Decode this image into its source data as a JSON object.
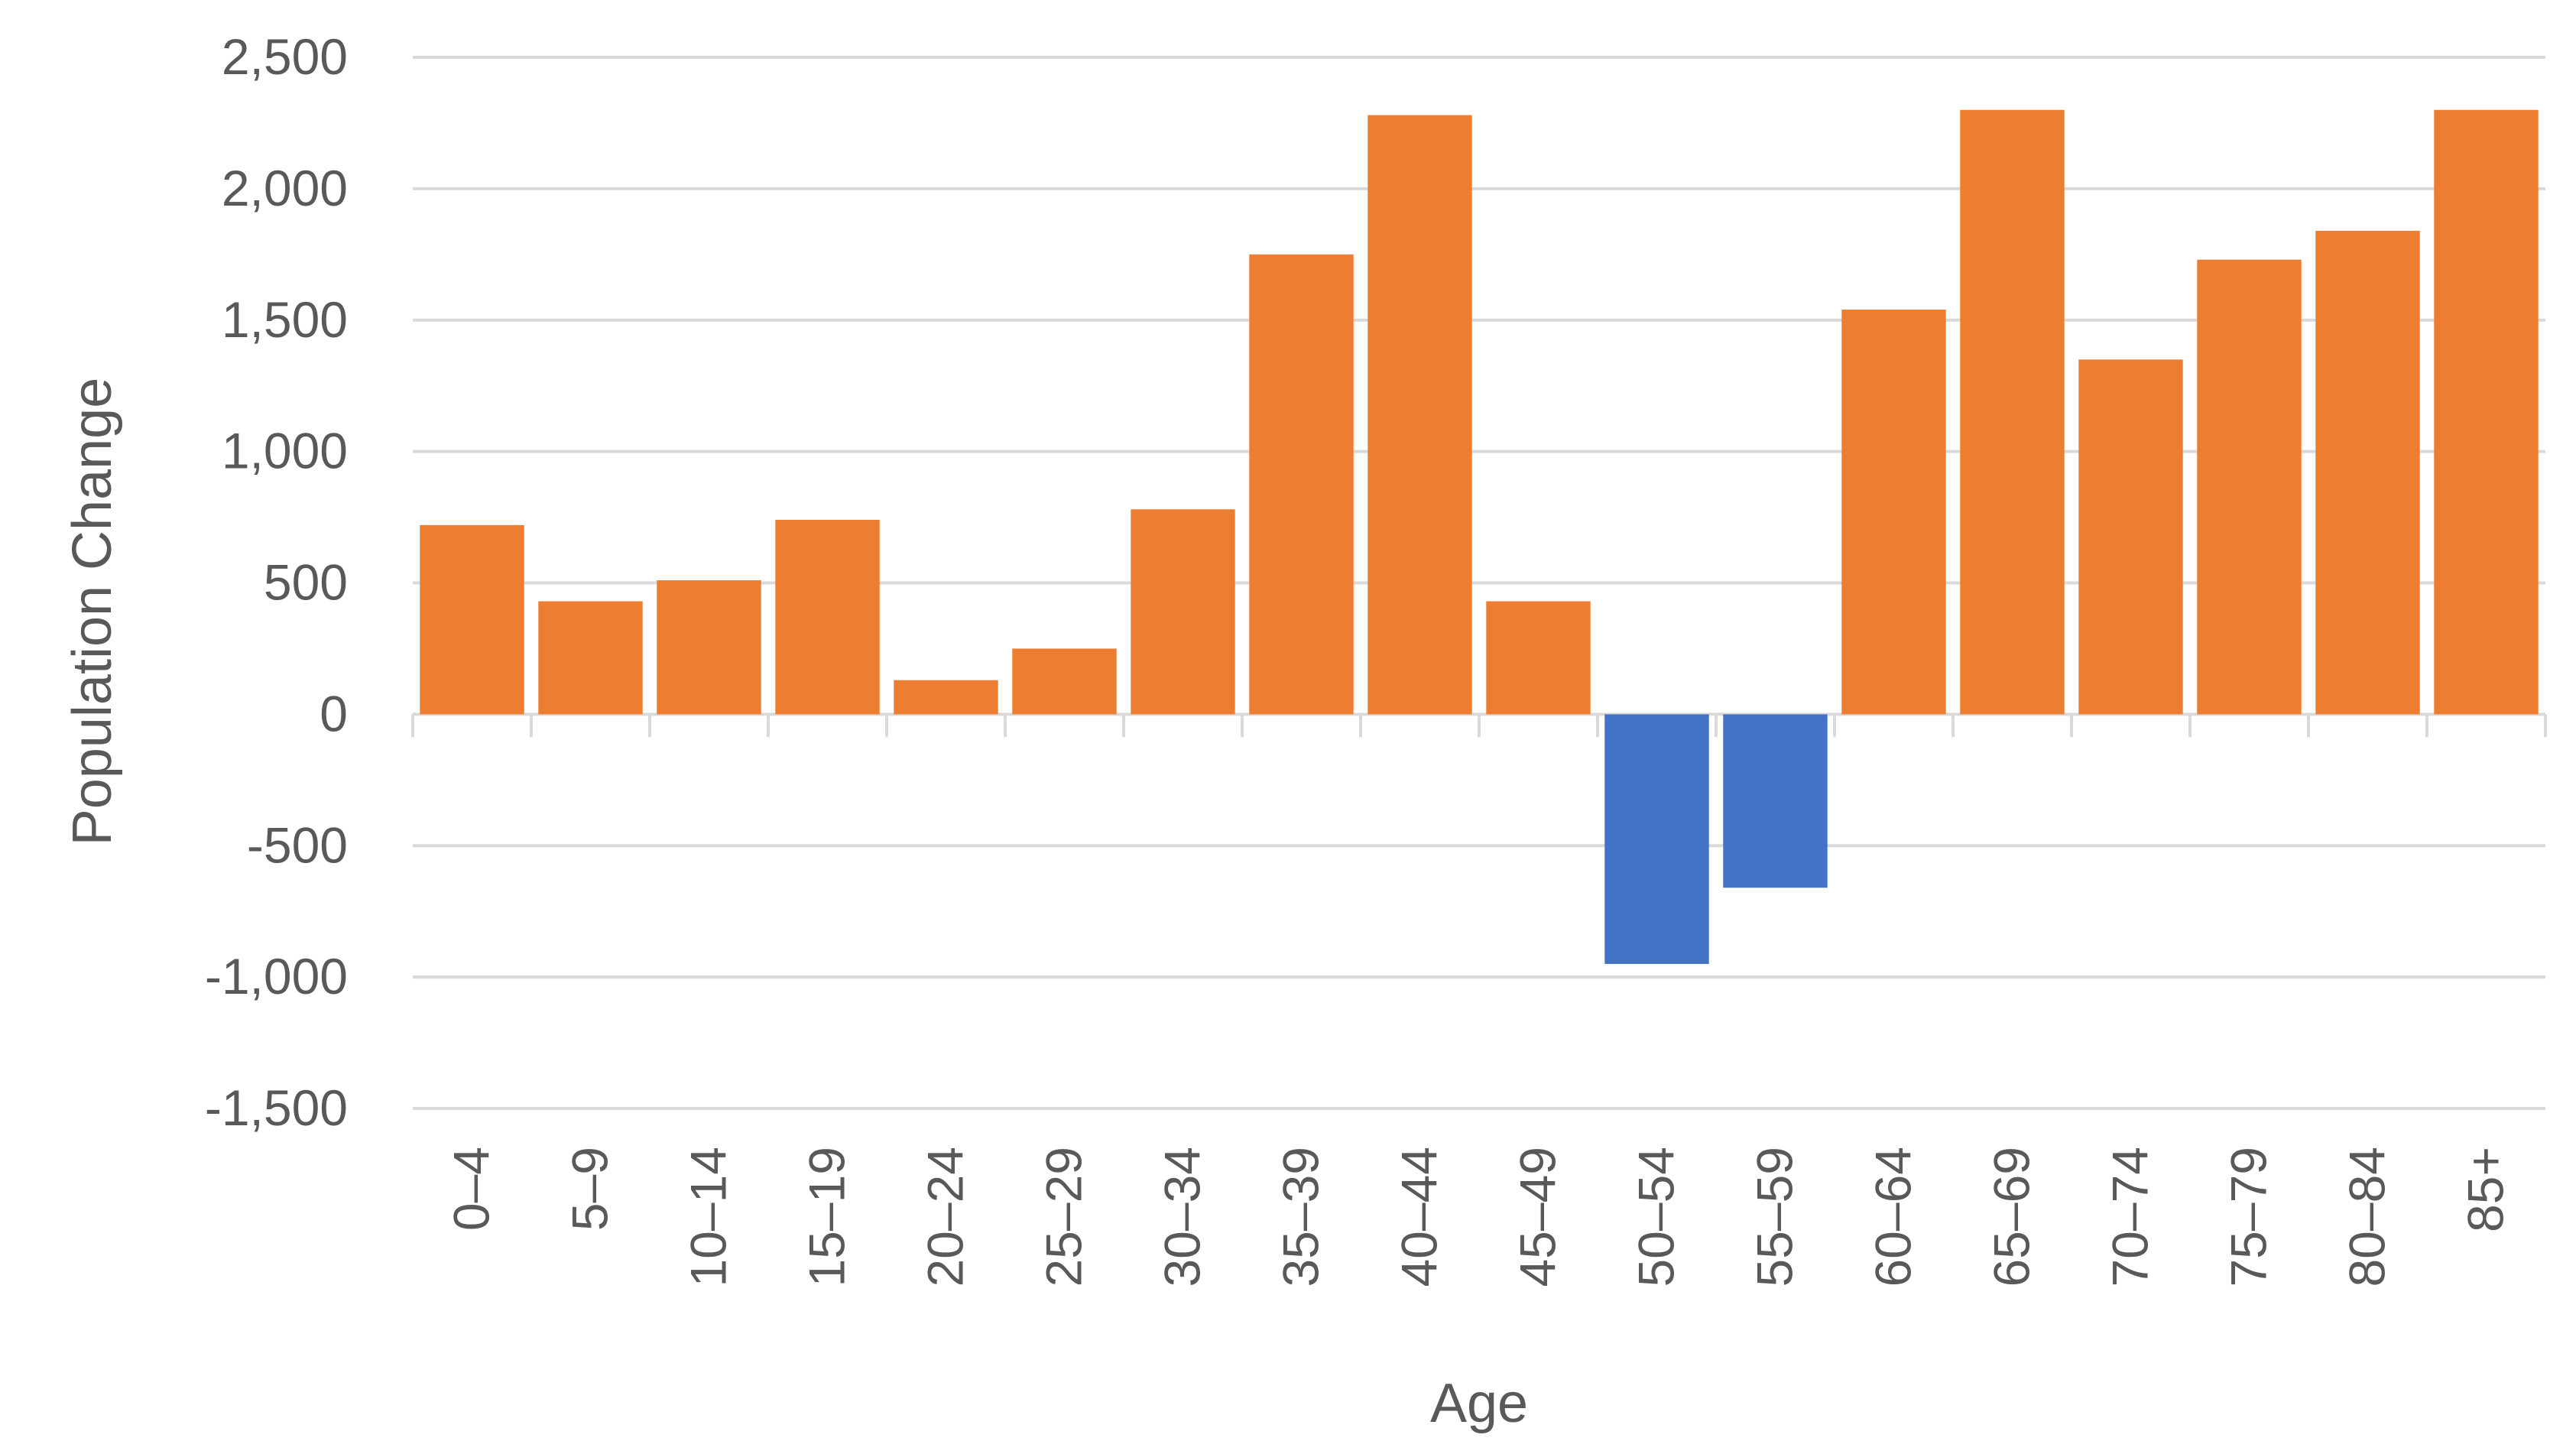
{
  "chart_data": {
    "type": "bar",
    "title": "",
    "xlabel": "Age",
    "ylabel": "Population Change",
    "categories": [
      "0–4",
      "5–9",
      "10–14",
      "15–19",
      "20–24",
      "25–29",
      "30–34",
      "35–39",
      "40–44",
      "45–49",
      "50–54",
      "55–59",
      "60–64",
      "65–69",
      "70–74",
      "75–79",
      "80–84",
      "85+"
    ],
    "series": [
      {
        "values": [
          720,
          430,
          510,
          740,
          130,
          250,
          780,
          1750,
          2280,
          430,
          -950,
          -660,
          1540,
          2300,
          1350,
          1730,
          1840,
          2300
        ]
      }
    ],
    "ylim": [
      -1500,
      2500
    ],
    "yticks": [
      2500,
      2000,
      1500,
      1000,
      500,
      0,
      -500,
      -1000,
      -1500
    ],
    "ytick_labels": [
      "2,500",
      "2,000",
      "1,500",
      "1,000",
      "500",
      "0",
      "-500",
      "-1,000",
      "-1,500"
    ],
    "colors": {
      "positive": "#ED7D31",
      "negative": "#4472C4",
      "grid": "#D9D9D9",
      "text": "#595959"
    },
    "grid": true,
    "legend": "none"
  }
}
